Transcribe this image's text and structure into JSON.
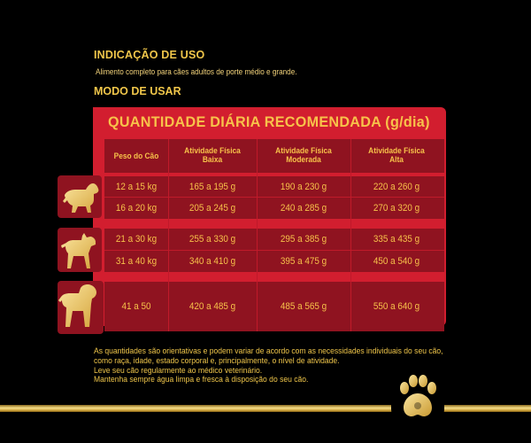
{
  "indicacao": {
    "title": "INDICAÇÃO DE USO",
    "text": "Alimento completo para cães adultos de porte médio e grande."
  },
  "modo": {
    "title": "MODO DE USAR"
  },
  "table": {
    "title": "QUANTIDADE DIÁRIA RECOMENDADA (g/dia)",
    "headers": {
      "peso": "Peso do Cão",
      "baixa": [
        "Atividade Física",
        "Baixa"
      ],
      "moderada": [
        "Atividade Física",
        "Moderada"
      ],
      "alta": [
        "Atividade Física",
        "Alta"
      ]
    },
    "rows": [
      {
        "peso": "12 a 15 kg",
        "baixa": "165 a 195 g",
        "moderada": "190 a 230 g",
        "alta": "220 a 260 g"
      },
      {
        "peso": "16 a 20 kg",
        "baixa": "205 a 245 g",
        "moderada": "240 a 285 g",
        "alta": "270 a 320 g"
      },
      {
        "peso": "21 a 30 kg",
        "baixa": "255 a 330 g",
        "moderada": "295 a 385 g",
        "alta": "335 a 435 g"
      },
      {
        "peso": "31 a 40 kg",
        "baixa": "340 a 410 g",
        "moderada": "395 a 475 g",
        "alta": "450 a 540 g"
      },
      {
        "peso": "41 a 50",
        "baixa": "420 a 485 g",
        "moderada": "485 a 565 g",
        "alta": "550 a 640 g"
      }
    ]
  },
  "notes": [
    "As quantidades são orientativas e podem variar de acordo com as necessidades individuais do seu cão,",
    "como raça, idade, estado corporal e, principalmente, o nível de atividade.",
    "Leve seu cão regularmente ao médico veterinário.",
    "Mantenha sempre água limpa e fresca à disposição do seu cão."
  ],
  "icons": {
    "small_dog": "small-dog-icon",
    "medium_dog": "medium-dog-icon",
    "large_dog": "large-dog-icon",
    "paw": "paw-icon"
  },
  "colors": {
    "panel": "#d21e2f",
    "row": "#8f1320",
    "gold": "#f7c24a",
    "background": "#000000"
  }
}
